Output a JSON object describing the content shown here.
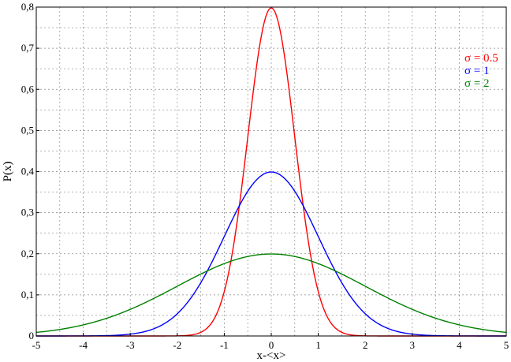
{
  "chart_data": {
    "type": "line",
    "title": "",
    "xlabel": "x-<x>",
    "ylabel": "P(x)",
    "xlim": [
      -5,
      5
    ],
    "ylim": [
      0,
      0.8
    ],
    "x_ticks": [
      "-5",
      "-4",
      "-3",
      "-2",
      "-1",
      "0",
      "1",
      "2",
      "3",
      "4",
      "5"
    ],
    "y_ticks": [
      "0",
      "0,1",
      "0,2",
      "0,3",
      "0,4",
      "0,5",
      "0,6",
      "0,7",
      "0,8"
    ],
    "grid": true,
    "legend_position": "top-right",
    "x": [
      -5,
      -4,
      -3,
      -2.5,
      -2,
      -1.5,
      -1,
      -0.5,
      0,
      0.5,
      1,
      1.5,
      2,
      2.5,
      3,
      4,
      5
    ],
    "series": [
      {
        "name": "σ = 0.5",
        "sigma": 0.5,
        "color": "#ff0000",
        "values": [
          0.0,
          0.0,
          0.0,
          0.0,
          0.0003,
          0.0089,
          0.108,
          0.484,
          0.798,
          0.484,
          0.108,
          0.0089,
          0.0003,
          0.0,
          0.0,
          0.0,
          0.0
        ]
      },
      {
        "name": "σ = 1",
        "sigma": 1,
        "color": "#0000ff",
        "values": [
          0.0,
          0.0001,
          0.0044,
          0.0175,
          0.054,
          0.1295,
          0.242,
          0.352,
          0.399,
          0.352,
          0.242,
          0.1295,
          0.054,
          0.0175,
          0.0044,
          0.0001,
          0.0
        ]
      },
      {
        "name": "σ = 2",
        "sigma": 2,
        "color": "#008000",
        "values": [
          0.0088,
          0.027,
          0.0648,
          0.0913,
          0.121,
          0.1506,
          0.176,
          0.1933,
          0.1995,
          0.1933,
          0.176,
          0.1506,
          0.121,
          0.0913,
          0.0648,
          0.027,
          0.0088
        ]
      }
    ]
  }
}
